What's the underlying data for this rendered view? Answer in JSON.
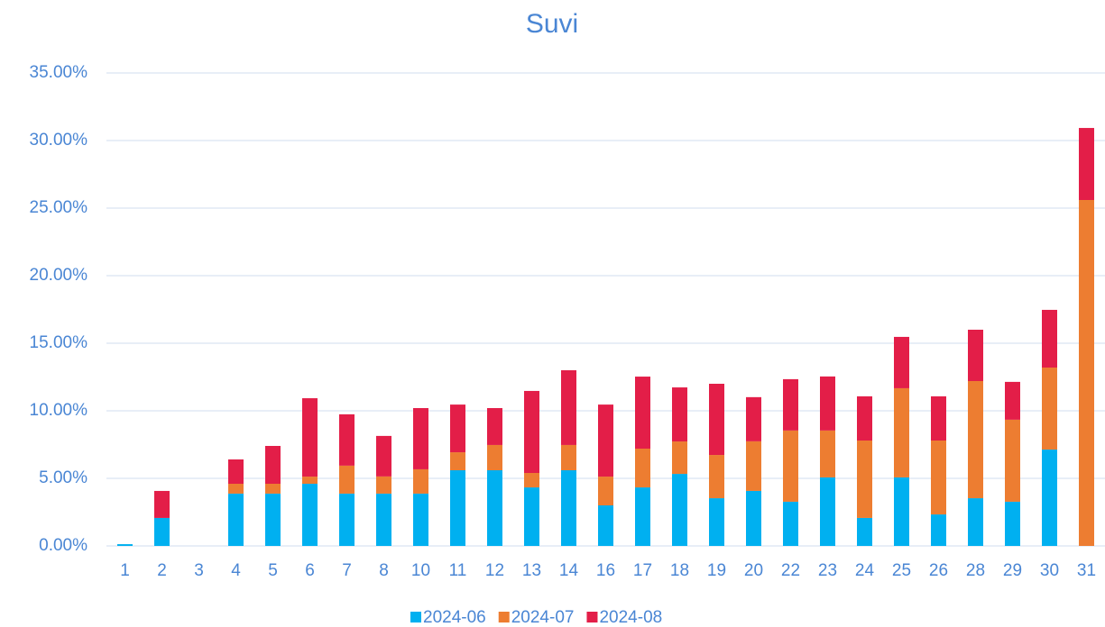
{
  "chart_data": {
    "type": "stacked_bar",
    "title": "Suvi",
    "categories": [
      "1",
      "2",
      "3",
      "4",
      "5",
      "6",
      "7",
      "8",
      "10",
      "11",
      "12",
      "13",
      "14",
      "16",
      "17",
      "18",
      "19",
      "20",
      "22",
      "23",
      "24",
      "25",
      "26",
      "28",
      "29",
      "30",
      "31"
    ],
    "series": [
      {
        "name": "2024-06",
        "color": "#00b0f0",
        "values": [
          0.13,
          2.07,
          0,
          3.87,
          3.87,
          4.6,
          3.87,
          3.87,
          3.87,
          5.6,
          5.6,
          4.33,
          5.6,
          3.0,
          4.33,
          5.33,
          3.53,
          4.07,
          3.27,
          5.07,
          2.07,
          5.07,
          2.33,
          3.53,
          3.27,
          7.13,
          0
        ]
      },
      {
        "name": "2024-07",
        "color": "#ed7d31",
        "values": [
          0,
          0,
          0,
          0.73,
          0.73,
          0.53,
          2.07,
          1.27,
          1.8,
          1.33,
          1.87,
          1.07,
          1.87,
          2.13,
          2.87,
          2.4,
          3.2,
          3.67,
          5.27,
          3.47,
          5.73,
          6.6,
          5.47,
          8.67,
          6.07,
          6.07,
          25.6
        ]
      },
      {
        "name": "2024-08",
        "color": "#e31e48",
        "values": [
          0,
          2.0,
          0,
          1.8,
          2.8,
          5.8,
          3.8,
          3.0,
          4.53,
          3.53,
          2.73,
          6.07,
          5.53,
          5.33,
          5.33,
          4.0,
          5.27,
          3.27,
          3.8,
          4.0,
          3.27,
          3.8,
          3.27,
          3.8,
          2.8,
          4.27,
          5.33
        ]
      }
    ],
    "ylim": [
      0,
      35
    ],
    "yticks": [
      {
        "value": 0,
        "label": "0.00%"
      },
      {
        "value": 5,
        "label": "5.00%"
      },
      {
        "value": 10,
        "label": "10.00%"
      },
      {
        "value": 15,
        "label": "15.00%"
      },
      {
        "value": 20,
        "label": "20.00%"
      },
      {
        "value": 25,
        "label": "25.00%"
      },
      {
        "value": 30,
        "label": "30.00%"
      },
      {
        "value": 35,
        "label": "35.00%"
      }
    ],
    "grid": true,
    "legend": "bottom"
  }
}
